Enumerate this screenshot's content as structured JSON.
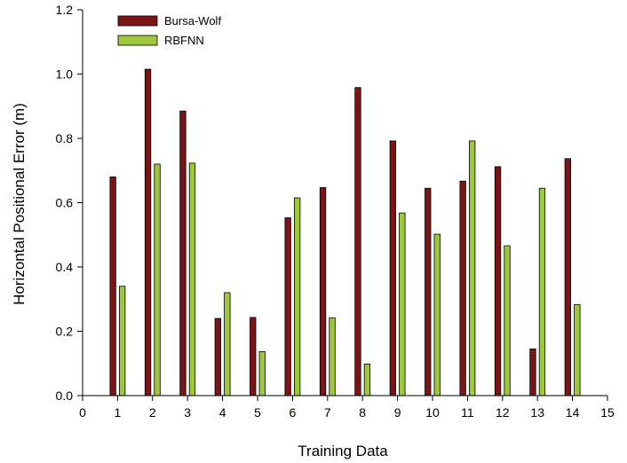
{
  "chart_data": {
    "type": "bar",
    "title": "",
    "xlabel": "Training Data",
    "ylabel": "Horizontal Positional Error (m)",
    "x": [
      1,
      2,
      3,
      4,
      5,
      6,
      7,
      8,
      9,
      10,
      11,
      12,
      13,
      14
    ],
    "xlim": [
      0,
      15
    ],
    "xticks": [
      "0",
      "1",
      "2",
      "3",
      "4",
      "5",
      "6",
      "7",
      "8",
      "9",
      "10",
      "11",
      "12",
      "13",
      "14",
      "15"
    ],
    "ylim": [
      0,
      1.2
    ],
    "yticks": [
      "0.0",
      "0.2",
      "0.4",
      "0.6",
      "0.8",
      "1.0",
      "1.2"
    ],
    "grid": false,
    "legend_position": "top-left",
    "series": [
      {
        "name": "Bursa-Wolf",
        "color": "#7b1416",
        "values": [
          0.68,
          1.015,
          0.885,
          0.24,
          0.243,
          0.553,
          0.647,
          0.958,
          0.792,
          0.645,
          0.667,
          0.712,
          0.145,
          0.737
        ]
      },
      {
        "name": "RBFNN",
        "color": "#9cc83c",
        "values": [
          0.34,
          0.72,
          0.723,
          0.32,
          0.137,
          0.615,
          0.242,
          0.098,
          0.568,
          0.502,
          0.792,
          0.466,
          0.645,
          0.283
        ]
      }
    ]
  }
}
